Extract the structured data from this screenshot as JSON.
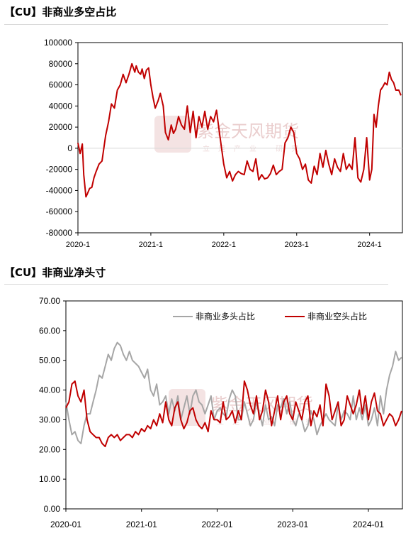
{
  "watermark": {
    "brand": "紫金天风期货",
    "slogan": "立足产业 研究"
  },
  "chart_data": [
    {
      "id": "chart1",
      "type": "line",
      "title": "【CU】非商业多空占比",
      "ylim": [
        -80000,
        100000
      ],
      "yticks": [
        -80000,
        -60000,
        -40000,
        -20000,
        0,
        20000,
        40000,
        60000,
        80000,
        100000
      ],
      "xlim": [
        2020.0,
        2024.45
      ],
      "xticks": [
        {
          "x": 2020.0,
          "label": "2020-1"
        },
        {
          "x": 2021.0,
          "label": "2021-1"
        },
        {
          "x": 2022.0,
          "label": "2022-1"
        },
        {
          "x": 2023.0,
          "label": "2023-1"
        },
        {
          "x": 2024.0,
          "label": "2024-1"
        }
      ],
      "grid": false,
      "series": [
        {
          "color": "#c00000",
          "x": [
            2020.0,
            2020.03,
            2020.06,
            2020.08,
            2020.11,
            2020.13,
            2020.16,
            2020.19,
            2020.22,
            2020.25,
            2020.29,
            2020.33,
            2020.38,
            2020.42,
            2020.46,
            2020.5,
            2020.54,
            2020.58,
            2020.62,
            2020.66,
            2020.7,
            2020.74,
            2020.78,
            2020.8,
            2020.83,
            2020.86,
            2020.88,
            2020.91,
            2020.94,
            2020.97,
            2021.0,
            2021.03,
            2021.06,
            2021.1,
            2021.13,
            2021.17,
            2021.2,
            2021.24,
            2021.28,
            2021.31,
            2021.34,
            2021.38,
            2021.42,
            2021.46,
            2021.5,
            2021.54,
            2021.58,
            2021.62,
            2021.66,
            2021.7,
            2021.74,
            2021.78,
            2021.82,
            2021.86,
            2021.9,
            2021.94,
            2022.0,
            2022.04,
            2022.08,
            2022.12,
            2022.16,
            2022.2,
            2022.24,
            2022.28,
            2022.32,
            2022.36,
            2022.4,
            2022.44,
            2022.48,
            2022.52,
            2022.56,
            2022.6,
            2022.64,
            2022.68,
            2022.72,
            2022.76,
            2022.8,
            2022.84,
            2022.88,
            2022.92,
            2022.96,
            2023.0,
            2023.04,
            2023.08,
            2023.12,
            2023.16,
            2023.2,
            2023.24,
            2023.28,
            2023.32,
            2023.36,
            2023.4,
            2023.44,
            2023.48,
            2023.52,
            2023.56,
            2023.6,
            2023.64,
            2023.68,
            2023.72,
            2023.76,
            2023.8,
            2023.84,
            2023.88,
            2023.92,
            2023.96,
            2024.0,
            2024.03,
            2024.06,
            2024.09,
            2024.12,
            2024.15,
            2024.18,
            2024.21,
            2024.24,
            2024.27,
            2024.3,
            2024.33,
            2024.36,
            2024.4,
            2024.43
          ],
          "y": [
            5000,
            -5000,
            4000,
            -25000,
            -46000,
            -43000,
            -38000,
            -37000,
            -28000,
            -22000,
            -15000,
            -12000,
            12000,
            25000,
            42000,
            38000,
            55000,
            60000,
            70000,
            62000,
            70000,
            80000,
            72000,
            78000,
            72000,
            70000,
            75000,
            66000,
            74000,
            76000,
            60000,
            48000,
            38000,
            45000,
            52000,
            40000,
            15000,
            8000,
            22000,
            14000,
            18000,
            30000,
            22000,
            18000,
            40000,
            15000,
            35000,
            10000,
            30000,
            20000,
            35000,
            18000,
            30000,
            25000,
            36000,
            15000,
            -15000,
            -28000,
            -22000,
            -31000,
            -25000,
            -22000,
            -24000,
            -25000,
            -12000,
            -20000,
            -22000,
            -10000,
            -30000,
            -25000,
            -29000,
            -28000,
            -24000,
            -16000,
            -25000,
            -22000,
            -20000,
            5000,
            10000,
            20000,
            15000,
            -5000,
            -10000,
            -20000,
            -15000,
            -30000,
            -33000,
            -17000,
            -25000,
            -5000,
            -18000,
            -2000,
            -15000,
            -25000,
            -10000,
            -18000,
            -22000,
            -5000,
            -20000,
            -15000,
            -20000,
            10000,
            -28000,
            -32000,
            -20000,
            10000,
            -30000,
            -20000,
            32000,
            20000,
            40000,
            55000,
            58000,
            62000,
            60000,
            72000,
            65000,
            62000,
            55000,
            55000,
            50000
          ],
          "x_label": "",
          "y_label": ""
        }
      ]
    },
    {
      "id": "chart2",
      "type": "line",
      "title": "【CU】非商业净头寸",
      "ylim": [
        0,
        70
      ],
      "yticks": [
        "0.00",
        "10.00",
        "20.00",
        "30.00",
        "40.00",
        "50.00",
        "60.00",
        "70.00"
      ],
      "xlim": [
        2020.0,
        2024.45
      ],
      "xticks": [
        {
          "x": 2020.0,
          "label": "2020-01"
        },
        {
          "x": 2021.0,
          "label": "2021-01"
        },
        {
          "x": 2022.0,
          "label": "2022-01"
        },
        {
          "x": 2023.0,
          "label": "2023-01"
        },
        {
          "x": 2024.0,
          "label": "2024-01"
        }
      ],
      "legend": "top-right",
      "grid": false,
      "series": [
        {
          "name": "非商业多头占比",
          "color": "#a6a6a6",
          "x": [
            2020.0,
            2020.04,
            2020.08,
            2020.12,
            2020.16,
            2020.2,
            2020.24,
            2020.28,
            2020.32,
            2020.36,
            2020.4,
            2020.44,
            2020.48,
            2020.52,
            2020.56,
            2020.6,
            2020.64,
            2020.68,
            2020.72,
            2020.76,
            2020.8,
            2020.84,
            2020.88,
            2020.92,
            2020.96,
            2021.0,
            2021.04,
            2021.08,
            2021.12,
            2021.16,
            2021.2,
            2021.24,
            2021.28,
            2021.32,
            2021.36,
            2021.4,
            2021.44,
            2021.48,
            2021.52,
            2021.56,
            2021.6,
            2021.64,
            2021.68,
            2021.72,
            2021.76,
            2021.8,
            2021.84,
            2021.88,
            2021.92,
            2021.96,
            2022.0,
            2022.04,
            2022.08,
            2022.12,
            2022.16,
            2022.2,
            2022.24,
            2022.28,
            2022.32,
            2022.36,
            2022.4,
            2022.44,
            2022.48,
            2022.52,
            2022.56,
            2022.6,
            2022.64,
            2022.68,
            2022.72,
            2022.76,
            2022.8,
            2022.84,
            2022.88,
            2022.92,
            2022.96,
            2023.0,
            2023.04,
            2023.08,
            2023.12,
            2023.16,
            2023.2,
            2023.24,
            2023.28,
            2023.32,
            2023.36,
            2023.4,
            2023.44,
            2023.48,
            2023.52,
            2023.56,
            2023.6,
            2023.64,
            2023.68,
            2023.72,
            2023.76,
            2023.8,
            2023.84,
            2023.88,
            2023.92,
            2023.96,
            2024.0,
            2024.04,
            2024.08,
            2024.12,
            2024.16,
            2024.2,
            2024.24,
            2024.28,
            2024.32,
            2024.36,
            2024.4,
            2024.44
          ],
          "y": [
            36,
            30,
            25,
            26,
            23,
            22,
            28,
            32,
            32,
            36,
            40,
            45,
            44,
            48,
            52,
            50,
            54,
            56,
            55,
            52,
            50,
            53,
            50,
            49,
            48,
            46,
            44,
            47,
            40,
            38,
            42,
            35,
            36,
            38,
            32,
            37,
            33,
            38,
            30,
            34,
            38,
            32,
            38,
            40,
            36,
            35,
            32,
            35,
            38,
            30,
            33,
            34,
            32,
            31,
            37,
            40,
            38,
            30,
            30,
            36,
            32,
            28,
            30,
            36,
            32,
            28,
            35,
            30,
            31,
            28,
            35,
            34,
            37,
            32,
            36,
            30,
            28,
            32,
            30,
            26,
            28,
            33,
            30,
            25,
            28,
            30,
            32,
            30,
            29,
            28,
            35,
            30,
            33,
            32,
            30,
            38,
            30,
            34,
            30,
            35,
            28,
            30,
            34,
            28,
            38,
            32,
            40,
            45,
            48,
            53,
            50,
            51
          ],
          "x_label": "",
          "y_label": ""
        },
        {
          "name": "非商业空头占比",
          "color": "#c00000",
          "x": [
            2020.0,
            2020.04,
            2020.08,
            2020.12,
            2020.16,
            2020.2,
            2020.24,
            2020.28,
            2020.32,
            2020.36,
            2020.4,
            2020.44,
            2020.48,
            2020.52,
            2020.56,
            2020.6,
            2020.64,
            2020.68,
            2020.72,
            2020.76,
            2020.8,
            2020.84,
            2020.88,
            2020.92,
            2020.96,
            2021.0,
            2021.04,
            2021.08,
            2021.12,
            2021.16,
            2021.2,
            2021.24,
            2021.28,
            2021.32,
            2021.36,
            2021.4,
            2021.44,
            2021.48,
            2021.52,
            2021.56,
            2021.6,
            2021.64,
            2021.68,
            2021.72,
            2021.76,
            2021.8,
            2021.84,
            2021.88,
            2021.92,
            2021.96,
            2022.0,
            2022.04,
            2022.08,
            2022.12,
            2022.16,
            2022.2,
            2022.24,
            2022.28,
            2022.32,
            2022.36,
            2022.4,
            2022.44,
            2022.48,
            2022.52,
            2022.56,
            2022.6,
            2022.64,
            2022.68,
            2022.72,
            2022.76,
            2022.8,
            2022.84,
            2022.88,
            2022.92,
            2022.96,
            2023.0,
            2023.04,
            2023.08,
            2023.12,
            2023.16,
            2023.2,
            2023.24,
            2023.28,
            2023.32,
            2023.36,
            2023.4,
            2023.44,
            2023.48,
            2023.52,
            2023.56,
            2023.6,
            2023.64,
            2023.68,
            2023.72,
            2023.76,
            2023.8,
            2023.84,
            2023.88,
            2023.92,
            2023.96,
            2024.0,
            2024.04,
            2024.08,
            2024.12,
            2024.16,
            2024.2,
            2024.24,
            2024.28,
            2024.32,
            2024.36,
            2024.4,
            2024.44
          ],
          "y": [
            34,
            36,
            42,
            43,
            38,
            36,
            40,
            30,
            26,
            25,
            24,
            24,
            22,
            21,
            24,
            25,
            24,
            25,
            23,
            24,
            25,
            25,
            24,
            26,
            25,
            27,
            26,
            28,
            27,
            30,
            28,
            32,
            29,
            36,
            30,
            28,
            34,
            36,
            30,
            27,
            29,
            33,
            34,
            30,
            28,
            27,
            29,
            26,
            33,
            30,
            30,
            29,
            36,
            30,
            31,
            33,
            29,
            33,
            30,
            43,
            40,
            35,
            32,
            38,
            30,
            33,
            40,
            36,
            28,
            33,
            38,
            30,
            36,
            38,
            32,
            30,
            36,
            33,
            30,
            36,
            38,
            28,
            33,
            31,
            35,
            28,
            42,
            38,
            30,
            33,
            36,
            28,
            30,
            38,
            35,
            32,
            35,
            40,
            32,
            38,
            30,
            36,
            39,
            33,
            32,
            28,
            30,
            32,
            31,
            28,
            30,
            33
          ],
          "x_label": "",
          "y_label": ""
        }
      ]
    }
  ]
}
